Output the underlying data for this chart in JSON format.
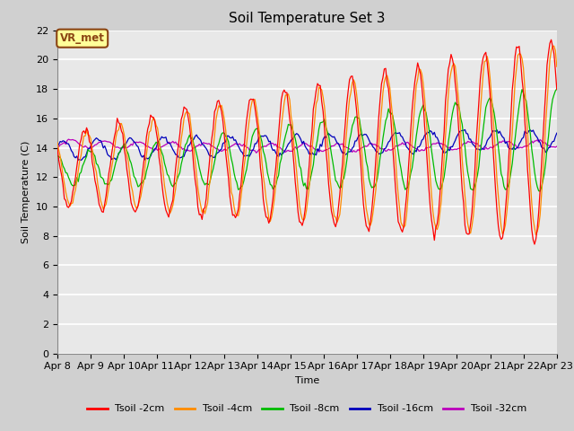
{
  "title": "Soil Temperature Set 3",
  "xlabel": "Time",
  "ylabel": "Soil Temperature (C)",
  "ylim": [
    0,
    22
  ],
  "yticks": [
    0,
    2,
    4,
    6,
    8,
    10,
    12,
    14,
    16,
    18,
    20,
    22
  ],
  "date_labels": [
    "Apr 8",
    "Apr 9",
    "Apr 10",
    "Apr 11",
    "Apr 12",
    "Apr 13",
    "Apr 14",
    "Apr 15",
    "Apr 16",
    "Apr 17",
    "Apr 18",
    "Apr 19",
    "Apr 20",
    "Apr 21",
    "Apr 22",
    "Apr 23"
  ],
  "legend_labels": [
    "Tsoil -2cm",
    "Tsoil -4cm",
    "Tsoil -8cm",
    "Tsoil -16cm",
    "Tsoil -32cm"
  ],
  "colors": [
    "#FF0000",
    "#FF8C00",
    "#00BB00",
    "#0000BB",
    "#BB00BB"
  ],
  "annotation_text": "VR_met",
  "annotation_bg": "#FFFF99",
  "annotation_border": "#8B4513",
  "fig_bg": "#D0D0D0",
  "plot_bg": "#E8E8E8",
  "title_fontsize": 11,
  "axis_fontsize": 8,
  "legend_fontsize": 8
}
